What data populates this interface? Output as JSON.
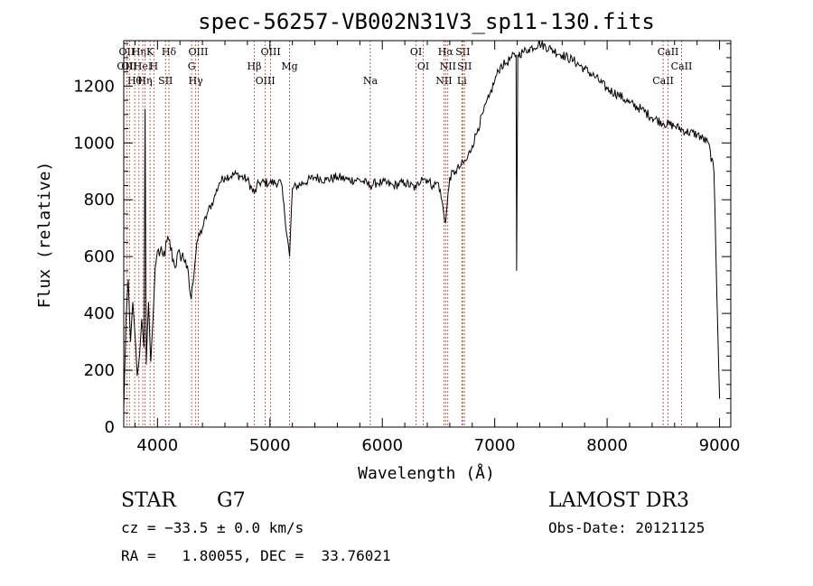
{
  "chart_data": {
    "type": "line",
    "title": "spec-56257-VB002N31V3_sp11-130.fits",
    "xlabel": "Wavelength (Å)",
    "ylabel": "Flux (relative)",
    "xlim": [
      3700,
      9100
    ],
    "ylim": [
      0,
      1360
    ],
    "xticks": [
      4000,
      5000,
      6000,
      7000,
      8000,
      9000
    ],
    "yticks": [
      0,
      200,
      400,
      600,
      800,
      1000,
      1200
    ],
    "grid": false,
    "series": [
      {
        "name": "flux",
        "points": [
          [
            3700,
            60
          ],
          [
            3720,
            380
          ],
          [
            3740,
            520
          ],
          [
            3760,
            300
          ],
          [
            3780,
            440
          ],
          [
            3800,
            330
          ],
          [
            3820,
            180
          ],
          [
            3840,
            250
          ],
          [
            3860,
            380
          ],
          [
            3880,
            280
          ],
          [
            3890,
            1120
          ],
          [
            3900,
            220
          ],
          [
            3920,
            440
          ],
          [
            3940,
            230
          ],
          [
            3960,
            380
          ],
          [
            3980,
            560
          ],
          [
            4000,
            620
          ],
          [
            4050,
            600
          ],
          [
            4100,
            660
          ],
          [
            4150,
            570
          ],
          [
            4200,
            610
          ],
          [
            4250,
            590
          ],
          [
            4300,
            450
          ],
          [
            4350,
            650
          ],
          [
            4400,
            700
          ],
          [
            4450,
            760
          ],
          [
            4500,
            800
          ],
          [
            4550,
            860
          ],
          [
            4600,
            880
          ],
          [
            4700,
            890
          ],
          [
            4800,
            870
          ],
          [
            4861,
            820
          ],
          [
            4900,
            860
          ],
          [
            5000,
            860
          ],
          [
            5100,
            860
          ],
          [
            5175,
            600
          ],
          [
            5200,
            840
          ],
          [
            5300,
            860
          ],
          [
            5400,
            880
          ],
          [
            5500,
            870
          ],
          [
            5600,
            880
          ],
          [
            5700,
            870
          ],
          [
            5800,
            870
          ],
          [
            5893,
            850
          ],
          [
            5950,
            860
          ],
          [
            6000,
            860
          ],
          [
            6100,
            850
          ],
          [
            6200,
            860
          ],
          [
            6300,
            840
          ],
          [
            6350,
            880
          ],
          [
            6400,
            870
          ],
          [
            6450,
            850
          ],
          [
            6500,
            860
          ],
          [
            6563,
            720
          ],
          [
            6600,
            880
          ],
          [
            6650,
            900
          ],
          [
            6700,
            920
          ],
          [
            6750,
            940
          ],
          [
            6800,
            990
          ],
          [
            6850,
            1050
          ],
          [
            6900,
            1110
          ],
          [
            6950,
            1160
          ],
          [
            7000,
            1220
          ],
          [
            7050,
            1270
          ],
          [
            7100,
            1280
          ],
          [
            7150,
            1300
          ],
          [
            7190,
            1310
          ],
          [
            7195,
            550
          ],
          [
            7205,
            1310
          ],
          [
            7250,
            1320
          ],
          [
            7300,
            1330
          ],
          [
            7400,
            1350
          ],
          [
            7500,
            1330
          ],
          [
            7600,
            1310
          ],
          [
            7700,
            1290
          ],
          [
            7800,
            1260
          ],
          [
            7900,
            1230
          ],
          [
            8000,
            1190
          ],
          [
            8100,
            1170
          ],
          [
            8200,
            1140
          ],
          [
            8300,
            1120
          ],
          [
            8400,
            1090
          ],
          [
            8500,
            1070
          ],
          [
            8600,
            1060
          ],
          [
            8700,
            1040
          ],
          [
            8800,
            1030
          ],
          [
            8900,
            1000
          ],
          [
            8950,
            900
          ],
          [
            9000,
            100
          ]
        ]
      }
    ],
    "lines": [
      {
        "x": 3727,
        "labels": [
          "OII",
          "OIII"
        ]
      },
      {
        "x": 3750,
        "labels": [
          "OII"
        ]
      },
      {
        "x": 3797,
        "labels": [
          "Hθ"
        ]
      },
      {
        "x": 3835,
        "labels": [
          "Hη"
        ]
      },
      {
        "x": 3869,
        "labels": [
          "HeI"
        ]
      },
      {
        "x": 3889,
        "labels": [
          "Hη"
        ]
      },
      {
        "x": 3934,
        "labels": [
          "K"
        ]
      },
      {
        "x": 3968,
        "labels": [
          "H"
        ]
      },
      {
        "x": 4072,
        "labels": [
          "SII"
        ]
      },
      {
        "x": 4102,
        "labels": [
          "Hδ"
        ]
      },
      {
        "x": 4304,
        "labels": [
          "G"
        ]
      },
      {
        "x": 4340,
        "labels": [
          "Hγ"
        ]
      },
      {
        "x": 4363,
        "labels": [
          "OIII"
        ]
      },
      {
        "x": 4861,
        "labels": [
          "Hβ"
        ]
      },
      {
        "x": 4959,
        "labels": [
          "OIII"
        ]
      },
      {
        "x": 5007,
        "labels": [
          "OIII"
        ]
      },
      {
        "x": 5175,
        "labels": [
          "Mg"
        ]
      },
      {
        "x": 5893,
        "labels": [
          "Na"
        ]
      },
      {
        "x": 6300,
        "labels": [
          "OI"
        ]
      },
      {
        "x": 6364,
        "labels": [
          "OI"
        ]
      },
      {
        "x": 6548,
        "labels": [
          "NII"
        ]
      },
      {
        "x": 6563,
        "labels": [
          "Hα"
        ]
      },
      {
        "x": 6583,
        "labels": [
          "NII"
        ]
      },
      {
        "x": 6708,
        "labels": [
          "Li"
        ]
      },
      {
        "x": 6716,
        "labels": [
          "SII"
        ]
      },
      {
        "x": 6731,
        "labels": [
          "SII"
        ]
      },
      {
        "x": 8498,
        "labels": [
          "CaII"
        ]
      },
      {
        "x": 8542,
        "labels": [
          "CaII"
        ]
      },
      {
        "x": 8662,
        "labels": [
          "CaII"
        ]
      }
    ]
  },
  "info": {
    "class": "STAR",
    "subclass": "G7",
    "survey": "LAMOST DR3",
    "redshift": "cz = −33.5 ± 0.0 km/s",
    "obs_date": "Obs-Date: 20121125",
    "coords": "RA =   1.80055, DEC =  33.76021"
  },
  "colors": {
    "line": "#000000",
    "marker": "#c0392b"
  }
}
